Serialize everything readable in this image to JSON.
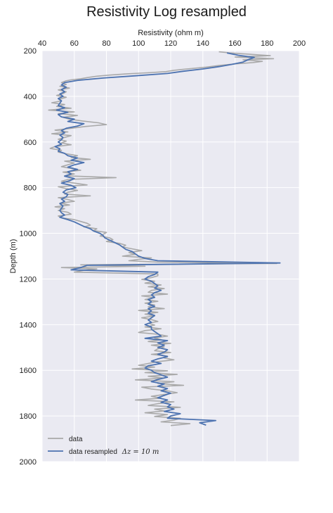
{
  "chart_data": {
    "type": "line",
    "title": "Resistivity Log resampled",
    "xlabel": "Resistivity (ohm m)",
    "ylabel": "Depth (m)",
    "xlim": [
      40,
      200
    ],
    "ylim": [
      2000,
      200
    ],
    "x_axis_position": "top",
    "y_inverted": true,
    "grid": true,
    "background": "#EAEAF2",
    "xticks": [
      "40",
      "60",
      "80",
      "100",
      "120",
      "140",
      "160",
      "180",
      "200"
    ],
    "yticks": [
      "200",
      "400",
      "600",
      "800",
      "1000",
      "1200",
      "1400",
      "1600",
      "1800",
      "2000"
    ],
    "legend_position": "lower-left",
    "series": [
      {
        "name": "data",
        "color": "#A9A9A9",
        "depth": [
          205,
          210,
          215,
          222,
          228,
          235,
          240,
          247,
          252,
          258,
          265,
          272,
          280,
          286,
          292,
          297,
          302,
          307,
          312,
          318,
          323,
          328,
          332,
          340,
          348,
          356,
          364,
          372,
          380,
          388,
          396,
          404,
          412,
          420,
          428,
          436,
          444,
          452,
          460,
          468,
          476,
          484,
          492,
          500,
          508,
          516,
          524,
          532,
          540,
          548,
          556,
          564,
          572,
          580,
          588,
          596,
          604,
          612,
          620,
          628,
          636,
          644,
          652,
          660,
          668,
          676,
          684,
          692,
          700,
          708,
          716,
          724,
          732,
          740,
          748,
          756,
          764,
          772,
          780,
          788,
          796,
          804,
          812,
          820,
          828,
          836,
          844,
          852,
          860,
          868,
          876,
          884,
          892,
          900,
          908,
          916,
          924,
          932,
          940,
          948,
          956,
          964,
          972,
          980,
          988,
          996,
          1004,
          1012,
          1020,
          1028,
          1036,
          1044,
          1052,
          1060,
          1068,
          1076,
          1084,
          1092,
          1100,
          1108,
          1114,
          1120,
          1126,
          1132,
          1138,
          1144,
          1150,
          1156,
          1162,
          1170,
          1178,
          1186,
          1194,
          1202,
          1210,
          1218,
          1226,
          1234,
          1242,
          1250,
          1258,
          1266,
          1274,
          1282,
          1290,
          1298,
          1306,
          1314,
          1322,
          1330,
          1338,
          1346,
          1354,
          1362,
          1370,
          1378,
          1386,
          1394,
          1402,
          1410,
          1418,
          1426,
          1434,
          1442,
          1450,
          1458,
          1466,
          1474,
          1482,
          1490,
          1498,
          1506,
          1514,
          1522,
          1530,
          1538,
          1546,
          1554,
          1562,
          1570,
          1578,
          1586,
          1594,
          1602,
          1610,
          1618,
          1626,
          1634,
          1642,
          1650,
          1658,
          1666,
          1674,
          1682,
          1690,
          1698,
          1706,
          1714,
          1722,
          1730,
          1738,
          1746,
          1754,
          1762,
          1770,
          1778,
          1786,
          1794,
          1802,
          1810,
          1818,
          1826,
          1834,
          1842
        ],
        "resistivity": [
          150,
          157,
          168,
          182,
          160,
          184,
          165,
          177,
          171,
          160,
          150,
          142,
          130,
          122,
          117,
          105,
          92,
          82,
          74,
          68,
          64,
          58,
          55,
          52,
          55,
          51,
          57,
          50,
          55,
          53,
          49,
          55,
          51,
          52,
          46,
          54,
          49,
          58,
          44,
          60,
          50,
          62,
          53,
          57,
          65,
          75,
          80,
          67,
          58,
          48,
          56,
          46,
          58,
          54,
          50,
          55,
          52,
          58,
          48,
          45,
          52,
          50,
          55,
          62,
          58,
          70,
          54,
          60,
          56,
          52,
          58,
          64,
          53,
          60,
          54,
          86,
          56,
          52,
          60,
          68,
          50,
          55,
          62,
          56,
          54,
          70,
          50,
          56,
          60,
          51,
          57,
          48,
          54,
          50,
          56,
          58,
          50,
          52,
          60,
          64,
          68,
          70,
          66,
          74,
          72,
          80,
          78,
          76,
          82,
          84,
          80,
          88,
          92,
          90,
          96,
          102,
          94,
          98,
          90,
          108,
          100,
          94,
          112,
          186,
          64,
          104,
          52,
          74,
          66,
          60,
          112,
          112,
          108,
          102,
          110,
          104,
          114,
          106,
          116,
          108,
          106,
          118,
          102,
          110,
          104,
          112,
          104,
          110,
          106,
          116,
          100,
          112,
          104,
          110,
          102,
          108,
          112,
          106,
          110,
          104,
          114,
          104,
          100,
          112,
          118,
          110,
          114,
          106,
          120,
          108,
          116,
          112,
          110,
          120,
          108,
          118,
          116,
          122,
          112,
          106,
          100,
          110,
          96,
          118,
          104,
          124,
          106,
          116,
          98,
          122,
          112,
          128,
          102,
          108,
          118,
          124,
          116,
          108,
          114,
          98,
          122,
          112,
          106,
          126,
          110,
          116,
          104,
          118,
          110,
          126,
          122,
          114,
          132,
          120,
          112,
          128,
          144,
          118,
          132,
          150,
          140,
          148,
          138,
          156,
          134,
          128
        ]
      },
      {
        "name": "data resampled Δz=10 m",
        "legend_text": "data resampled",
        "legend_math": "Δz = 10 m",
        "color": "#4C72B0",
        "depth": [
          210,
          220,
          230,
          240,
          250,
          260,
          270,
          280,
          290,
          300,
          310,
          320,
          330,
          340,
          350,
          360,
          370,
          380,
          390,
          400,
          410,
          420,
          430,
          440,
          450,
          460,
          470,
          480,
          490,
          500,
          510,
          520,
          530,
          540,
          550,
          560,
          570,
          580,
          590,
          600,
          610,
          620,
          630,
          640,
          650,
          660,
          670,
          680,
          690,
          700,
          710,
          720,
          730,
          740,
          750,
          760,
          770,
          780,
          790,
          800,
          810,
          820,
          830,
          840,
          850,
          860,
          870,
          880,
          890,
          900,
          910,
          920,
          930,
          940,
          950,
          960,
          970,
          980,
          990,
          1000,
          1010,
          1020,
          1030,
          1040,
          1050,
          1060,
          1070,
          1080,
          1090,
          1100,
          1110,
          1120,
          1130,
          1140,
          1150,
          1160,
          1170,
          1180,
          1190,
          1200,
          1210,
          1220,
          1230,
          1240,
          1250,
          1260,
          1270,
          1280,
          1290,
          1300,
          1310,
          1320,
          1330,
          1340,
          1350,
          1360,
          1370,
          1380,
          1390,
          1400,
          1410,
          1420,
          1430,
          1440,
          1450,
          1460,
          1470,
          1480,
          1490,
          1500,
          1510,
          1520,
          1530,
          1540,
          1550,
          1560,
          1570,
          1580,
          1590,
          1600,
          1610,
          1620,
          1630,
          1640,
          1650,
          1660,
          1670,
          1680,
          1690,
          1700,
          1710,
          1720,
          1730,
          1740,
          1750,
          1760,
          1770,
          1780,
          1790,
          1800,
          1810,
          1820,
          1830,
          1840
        ],
        "resistivity": [
          155,
          162,
          172,
          168,
          165,
          158,
          150,
          140,
          128,
          118,
          98,
          78,
          62,
          54,
          52,
          55,
          52,
          54,
          51,
          53,
          50,
          52,
          51,
          50,
          54,
          49,
          56,
          50,
          52,
          60,
          56,
          66,
          62,
          55,
          52,
          54,
          51,
          53,
          52,
          50,
          52,
          48,
          51,
          50,
          54,
          56,
          62,
          58,
          66,
          60,
          56,
          62,
          56,
          58,
          54,
          60,
          57,
          52,
          58,
          61,
          55,
          53,
          56,
          55,
          52,
          54,
          51,
          53,
          52,
          51,
          52,
          54,
          51,
          56,
          60,
          63,
          66,
          70,
          72,
          76,
          78,
          79,
          82,
          85,
          88,
          90,
          92,
          96,
          98,
          100,
          104,
          112,
          188,
          68,
          64,
          58,
          112,
          110,
          106,
          104,
          108,
          110,
          112,
          110,
          114,
          110,
          108,
          110,
          106,
          108,
          106,
          110,
          106,
          108,
          106,
          110,
          108,
          106,
          108,
          104,
          108,
          108,
          110,
          112,
          114,
          104,
          118,
          112,
          116,
          112,
          118,
          116,
          112,
          118,
          112,
          108,
          114,
          106,
          104,
          108,
          110,
          114,
          118,
          112,
          108,
          116,
          112,
          118,
          114,
          120,
          116,
          112,
          118,
          114,
          120,
          118,
          122,
          116,
          126,
          120,
          118,
          148,
          138,
          142
        ]
      }
    ]
  }
}
